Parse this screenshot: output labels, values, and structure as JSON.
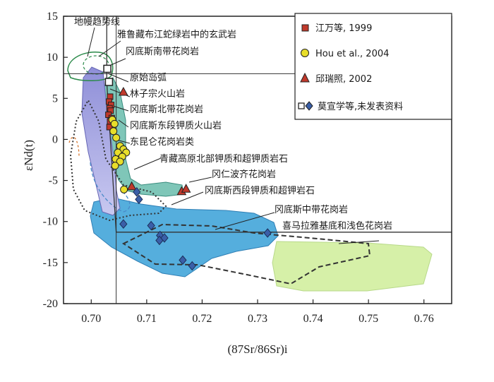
{
  "chart_data": {
    "type": "scatter",
    "xlabel": "(87Sr/86Sr)i",
    "ylabel": "εNd(t)",
    "xlim": [
      0.695,
      0.765
    ],
    "ylim": [
      -20,
      15
    ],
    "xticks": [
      "0.70",
      "0.71",
      "0.72",
      "0.73",
      "0.74",
      "0.75",
      "0.76"
    ],
    "yticks": [
      "15",
      "10",
      "5",
      "0",
      "-5",
      "-10",
      "-15",
      "-20"
    ],
    "mantle_array_label": "地幔趋势线",
    "mantle_array": [
      [
        0.7028,
        15
      ],
      [
        0.7028,
        7
      ],
      [
        0.7045,
        -11.3
      ],
      [
        0.765,
        -11.3
      ]
    ],
    "reference_lines": {
      "x": 0.7045,
      "y_upper": 8,
      "y_lower": -11.3
    },
    "series": [
      {
        "name": "江万等, 1999",
        "marker": "square-filled",
        "color": "#c0392b",
        "points": [
          [
            0.7034,
            5.2
          ],
          [
            0.7032,
            4.6
          ],
          [
            0.7036,
            4.2
          ],
          [
            0.7033,
            3.8
          ],
          [
            0.7035,
            3.5
          ],
          [
            0.7031,
            3.0
          ],
          [
            0.7037,
            2.6
          ],
          [
            0.7034,
            2.2
          ],
          [
            0.7033,
            1.5
          ]
        ]
      },
      {
        "name": "Hou et al., 2004",
        "marker": "circle",
        "color": "#e8de2a",
        "points": [
          [
            0.7038,
            2.4
          ],
          [
            0.7042,
            1.9
          ],
          [
            0.704,
            1.0
          ],
          [
            0.7045,
            0.2
          ],
          [
            0.7052,
            -0.8
          ],
          [
            0.7058,
            -1.2
          ],
          [
            0.7063,
            -1.6
          ],
          [
            0.7048,
            -1.6
          ],
          [
            0.7056,
            -2.1
          ],
          [
            0.7044,
            -2.4
          ],
          [
            0.7052,
            -2.7
          ],
          [
            0.7043,
            -3.2
          ],
          [
            0.7059,
            -6.1
          ]
        ]
      },
      {
        "name": "邱瑞照, 2002",
        "marker": "triangle",
        "color": "#c0392b",
        "points": [
          [
            0.7058,
            5.8
          ],
          [
            0.7073,
            -5.7
          ],
          [
            0.7163,
            -6.3
          ],
          [
            0.7171,
            -6.0
          ]
        ]
      },
      {
        "name": "莫宣学等,未发表资料",
        "marker": "square-open+diamond",
        "color": "#3a5fa8",
        "points": [
          [
            0.7029,
            8.6
          ],
          [
            0.7032,
            7.0
          ],
          [
            0.7082,
            -6.4
          ],
          [
            0.7086,
            -7.3
          ],
          [
            0.7058,
            -10.3
          ],
          [
            0.7108,
            -10.5
          ],
          [
            0.7124,
            -11.7
          ],
          [
            0.7123,
            -12.3
          ],
          [
            0.7132,
            -12.0
          ],
          [
            0.7165,
            -14.7
          ],
          [
            0.7182,
            -15.4
          ],
          [
            0.7318,
            -11.4
          ]
        ]
      }
    ],
    "annotations": [
      "地幔趋势线",
      "雅鲁藏布江蛇绿岩中的玄武岩",
      "冈底斯南带花岗岩",
      "原始岛弧",
      "林子宗火山岩",
      "冈底斯北带花岗岩",
      "冈底斯东段钾质火山岩",
      "东昆仑花岗岩类",
      "青藏高原北部钾质和超钾质岩石",
      "冈仁波齐花岗岩",
      "冈底斯西段钾质和超钾岩石",
      "冈底斯中带花岗岩",
      "喜马拉雅基底和浅色花岗岩"
    ],
    "grid": false,
    "legend_position": "top-right"
  }
}
